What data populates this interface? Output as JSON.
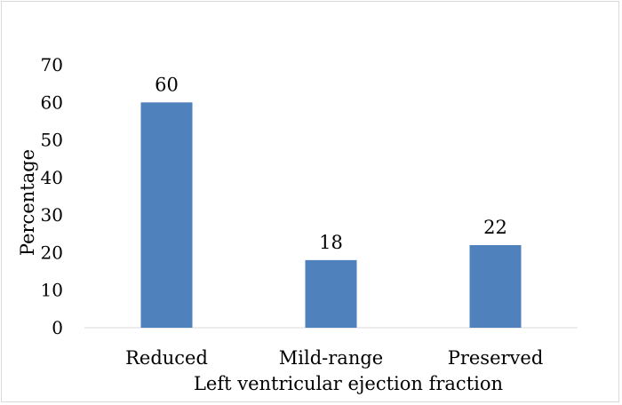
{
  "chart_data": {
    "type": "bar",
    "title": "",
    "xlabel": "Left ventricular ejection fraction",
    "ylabel": "Percentage",
    "categories": [
      "Reduced",
      "Mild-range",
      "Preserved"
    ],
    "values": [
      60,
      18,
      22
    ],
    "data_labels": [
      "60",
      "18",
      "22"
    ],
    "ylim": [
      0,
      70
    ],
    "yticks": [
      "0",
      "10",
      "20",
      "30",
      "40",
      "50",
      "60",
      "70"
    ],
    "grid": false,
    "legend": "none",
    "bar_color": "#4f81bd",
    "axis_color": "#d9d9d9"
  }
}
